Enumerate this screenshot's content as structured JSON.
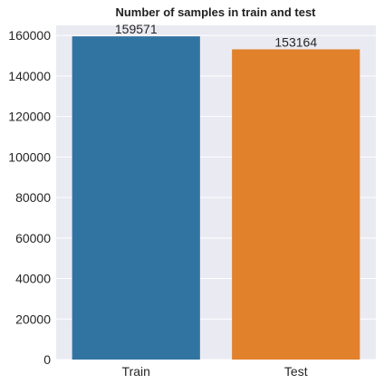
{
  "chart_data": {
    "type": "bar",
    "title": "Number of samples in train and test",
    "xlabel": "",
    "ylabel": "",
    "categories": [
      "Train",
      "Test"
    ],
    "values": [
      159571,
      153164
    ],
    "data_labels": [
      "159571",
      "153164"
    ],
    "ylim": [
      0,
      165000
    ],
    "yticks": [
      0,
      20000,
      40000,
      60000,
      80000,
      100000,
      120000,
      140000,
      160000
    ],
    "ytick_labels": [
      "0",
      "20000",
      "40000",
      "60000",
      "80000",
      "100000",
      "120000",
      "140000",
      "160000"
    ],
    "grid": true,
    "legend": "none",
    "colors": {
      "plot_background": "#EAEAF2",
      "grid": "#FFFFFF",
      "bars": [
        "#3274A1",
        "#E1812C"
      ]
    }
  }
}
